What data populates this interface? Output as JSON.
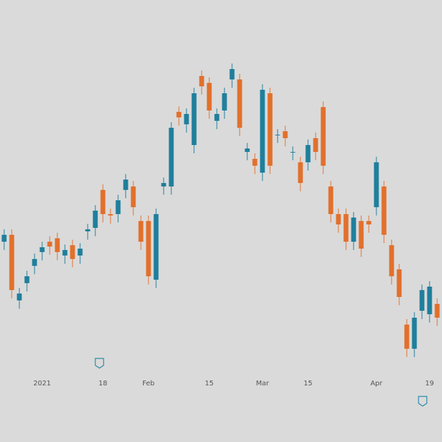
{
  "chart_data": {
    "type": "candlestick",
    "categories": [
      null,
      null,
      null,
      null,
      null,
      "2021",
      null,
      null,
      null,
      null,
      null,
      null,
      null,
      "18",
      null,
      null,
      null,
      null,
      null,
      "Feb",
      null,
      null,
      null,
      null,
      null,
      null,
      null,
      "15",
      null,
      null,
      null,
      null,
      null,
      null,
      "Mar",
      null,
      null,
      null,
      null,
      null,
      "15",
      null,
      null,
      null,
      null,
      null,
      null,
      null,
      null,
      "Apr",
      null,
      null,
      null,
      null,
      null,
      null,
      "19",
      null
    ],
    "open": [
      290,
      300,
      205,
      230,
      255,
      275,
      290,
      295,
      270,
      285,
      270,
      305,
      310,
      365,
      330,
      330,
      365,
      370,
      320,
      320,
      235,
      370,
      370,
      478,
      460,
      430,
      530,
      520,
      465,
      480,
      525,
      525,
      420,
      410,
      390,
      505,
      445,
      450,
      420,
      405,
      405,
      440,
      485,
      370,
      330,
      330,
      290,
      320,
      320,
      340,
      370,
      285,
      250,
      170,
      135,
      190,
      185,
      200
    ],
    "high": [
      308,
      308,
      223,
      248,
      273,
      290,
      298,
      303,
      286,
      293,
      288,
      316,
      343,
      373,
      338,
      358,
      388,
      378,
      328,
      328,
      338,
      383,
      463,
      486,
      483,
      513,
      538,
      528,
      483,
      513,
      548,
      533,
      433,
      418,
      518,
      513,
      453,
      458,
      428,
      413,
      438,
      448,
      493,
      378,
      338,
      338,
      333,
      328,
      328,
      413,
      378,
      293,
      258,
      178,
      188,
      228,
      233,
      208
    ],
    "low": [
      278,
      208,
      193,
      218,
      243,
      263,
      271,
      263,
      258,
      253,
      258,
      293,
      298,
      318,
      316,
      318,
      353,
      328,
      278,
      228,
      223,
      358,
      358,
      458,
      448,
      418,
      503,
      468,
      453,
      468,
      513,
      443,
      408,
      388,
      378,
      388,
      433,
      428,
      408,
      363,
      393,
      408,
      388,
      318,
      303,
      278,
      278,
      268,
      303,
      328,
      288,
      228,
      198,
      123,
      123,
      178,
      173,
      168
    ],
    "close": [
      300,
      220,
      215,
      240,
      265,
      282,
      283,
      275,
      278,
      265,
      280,
      308,
      335,
      330,
      328,
      350,
      380,
      340,
      290,
      240,
      330,
      375,
      455,
      470,
      475,
      505,
      515,
      480,
      475,
      505,
      540,
      455,
      425,
      400,
      510,
      400,
      445,
      440,
      420,
      375,
      430,
      420,
      400,
      330,
      315,
      290,
      325,
      280,
      315,
      405,
      300,
      240,
      210,
      135,
      180,
      220,
      225,
      180
    ],
    "up_color": "#1f7f9c",
    "down_color": "#e2702c",
    "ylim": [
      0,
      640
    ]
  }
}
